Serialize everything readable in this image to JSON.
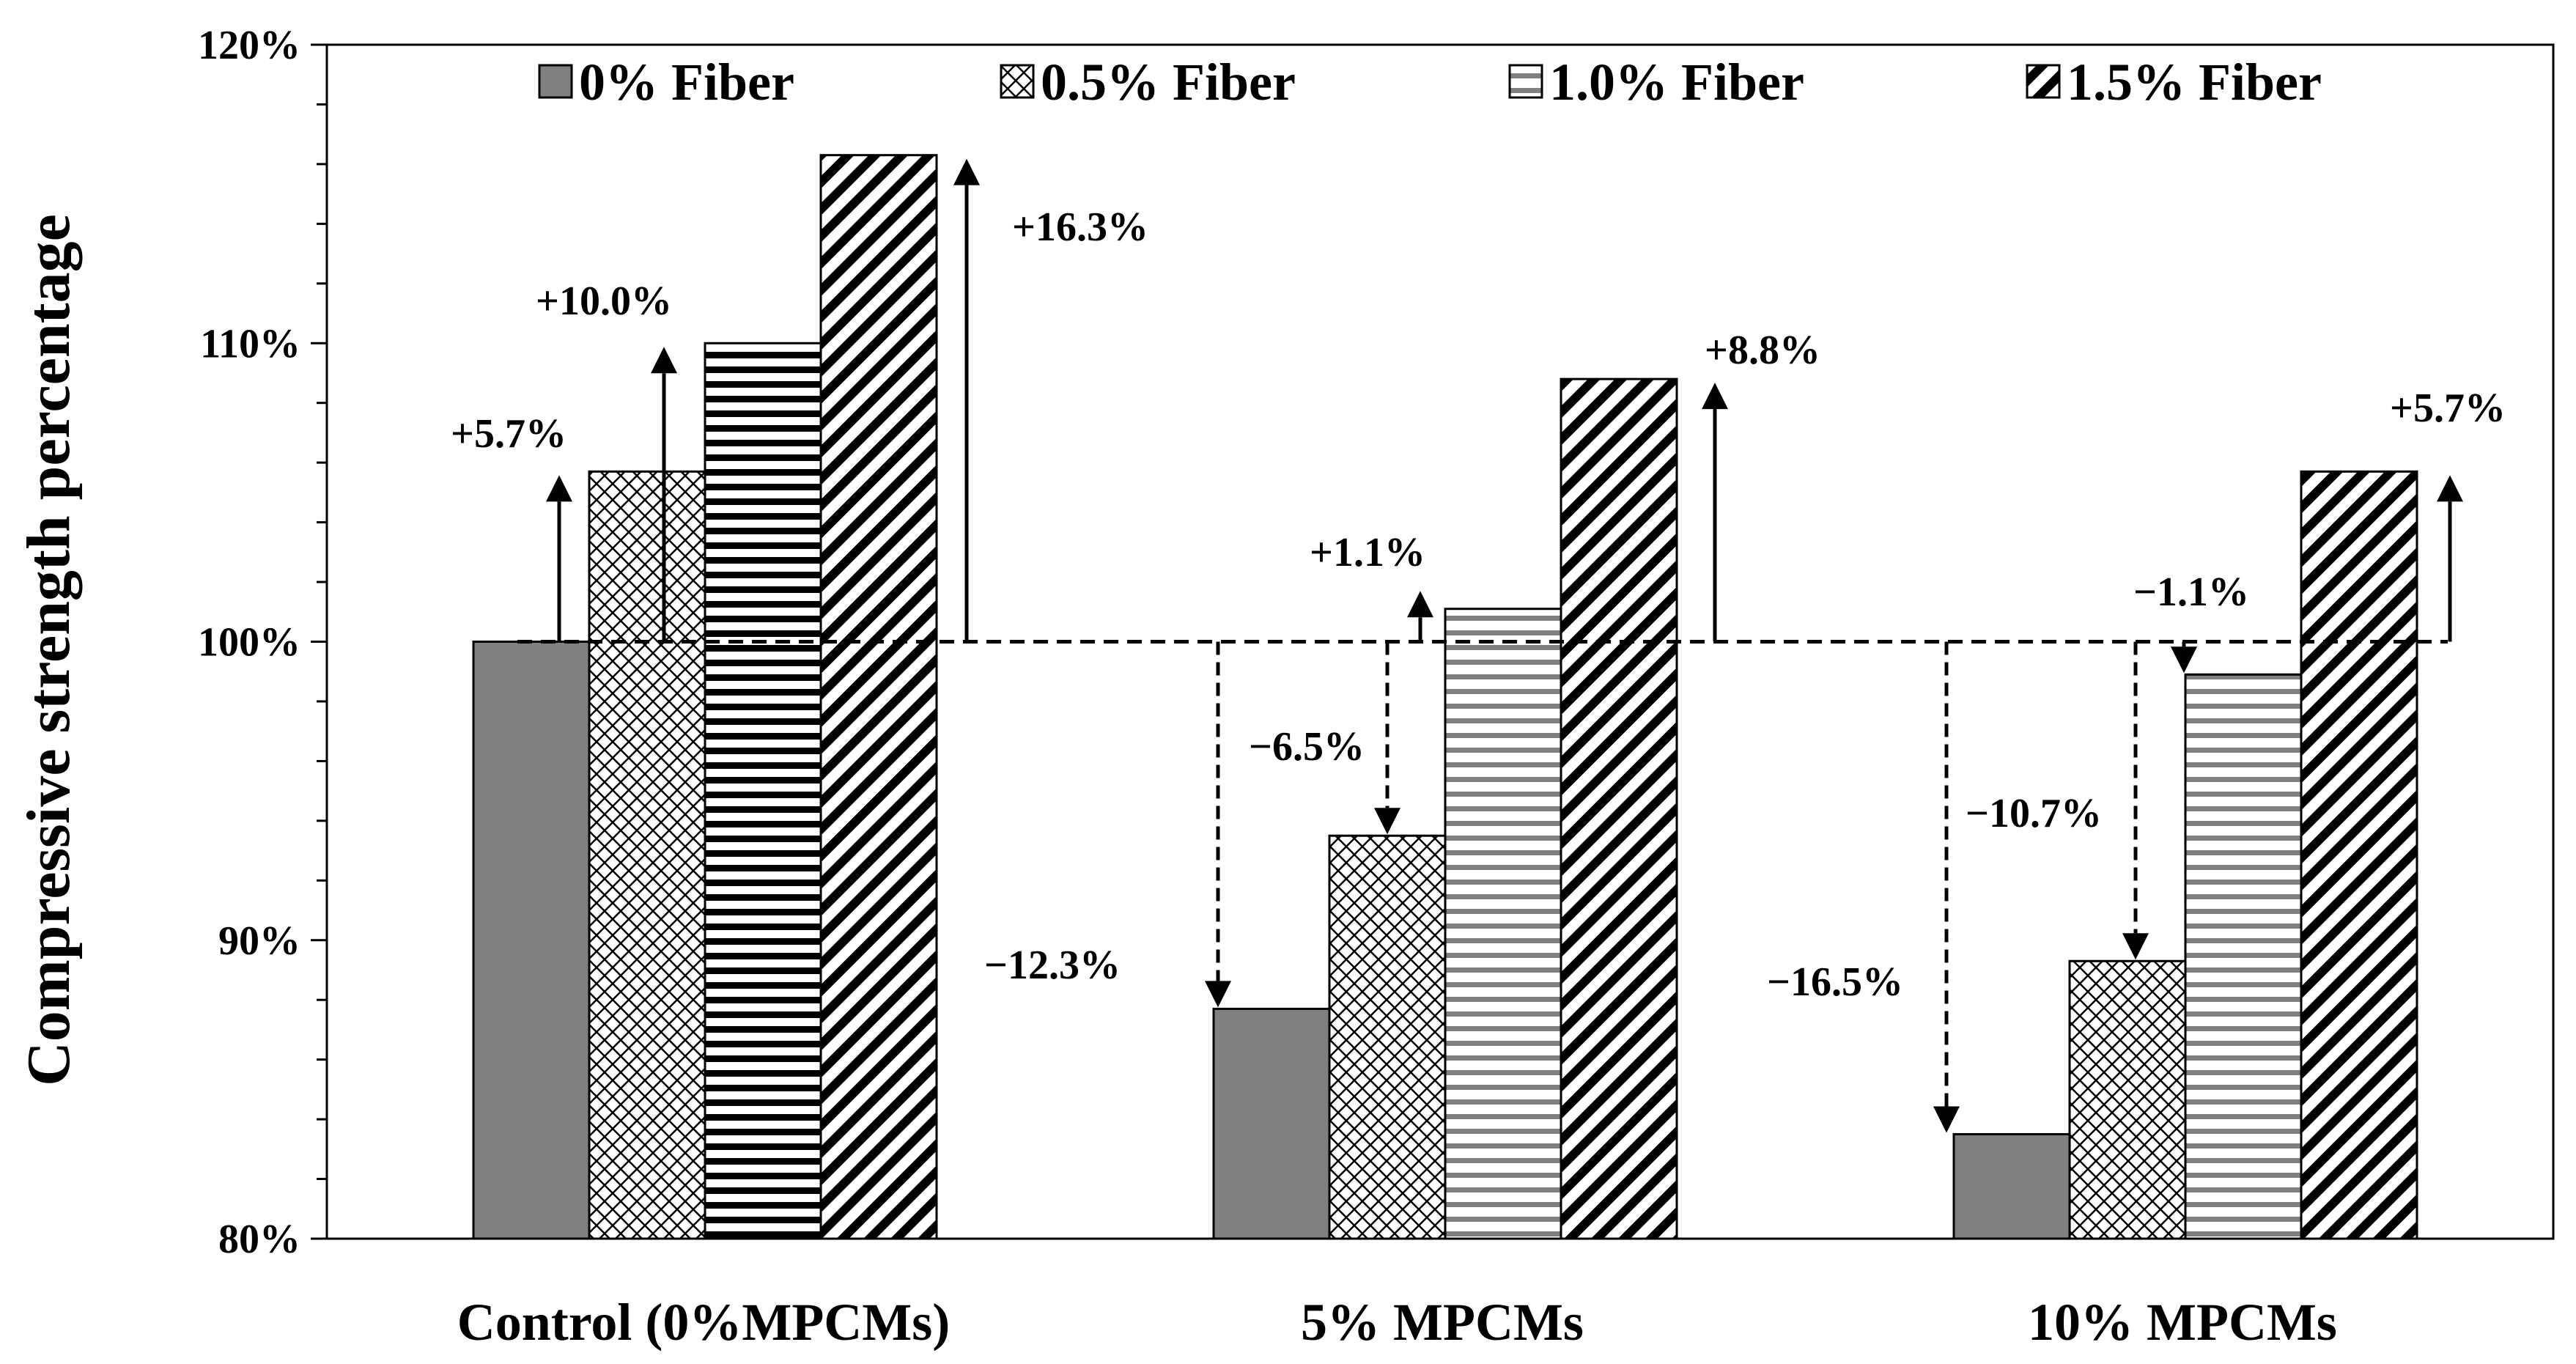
{
  "chart_data": {
    "type": "bar",
    "ylabel": "Compressive strength percentage",
    "xlabel": "",
    "ylim": [
      80,
      120
    ],
    "yticks": [
      "80%",
      "90%",
      "100%",
      "110%",
      "120%"
    ],
    "categories": [
      "Control (0%MPCMs)",
      "5% MPCMs",
      "10% MPCMs"
    ],
    "series": [
      {
        "name": "0% Fiber",
        "values": [
          100,
          87.7,
          83.5
        ],
        "pattern": "solid"
      },
      {
        "name": "0.5% Fiber",
        "values": [
          105.7,
          93.5,
          89.3
        ],
        "pattern": "crosshatch"
      },
      {
        "name": "1.0% Fiber",
        "values": [
          110.0,
          101.1,
          98.9
        ],
        "pattern": "horizontal"
      },
      {
        "name": "1.5% Fiber",
        "values": [
          116.3,
          108.8,
          105.7
        ],
        "pattern": "diagonal"
      }
    ],
    "reference_line": 100,
    "legend_position": "top",
    "annotations": [
      {
        "text": "+5.7%",
        "category": 0,
        "series": 1,
        "direction": "up",
        "style": "solid"
      },
      {
        "text": "+10.0%",
        "category": 0,
        "series": 2,
        "direction": "up",
        "style": "solid"
      },
      {
        "text": "+16.3%",
        "category": 0,
        "series": 3,
        "direction": "up",
        "style": "solid"
      },
      {
        "text": "−12.3%",
        "category": 1,
        "series": 0,
        "direction": "down",
        "style": "dashed"
      },
      {
        "text": "−6.5%",
        "category": 1,
        "series": 1,
        "direction": "down",
        "style": "dashed"
      },
      {
        "text": "+1.1%",
        "category": 1,
        "series": 2,
        "direction": "up",
        "style": "solid"
      },
      {
        "text": "+8.8%",
        "category": 1,
        "series": 3,
        "direction": "up",
        "style": "solid"
      },
      {
        "text": "−16.5%",
        "category": 2,
        "series": 0,
        "direction": "down",
        "style": "dashed"
      },
      {
        "text": "−10.7%",
        "category": 2,
        "series": 1,
        "direction": "down",
        "style": "dashed"
      },
      {
        "text": "−1.1%",
        "category": 2,
        "series": 2,
        "direction": "down",
        "style": "dashed"
      },
      {
        "text": "+5.7%",
        "category": 2,
        "series": 3,
        "direction": "up",
        "style": "solid"
      }
    ],
    "colors": {
      "solid_fill": "#808080",
      "stroke": "#000000",
      "background": "#ffffff"
    }
  }
}
